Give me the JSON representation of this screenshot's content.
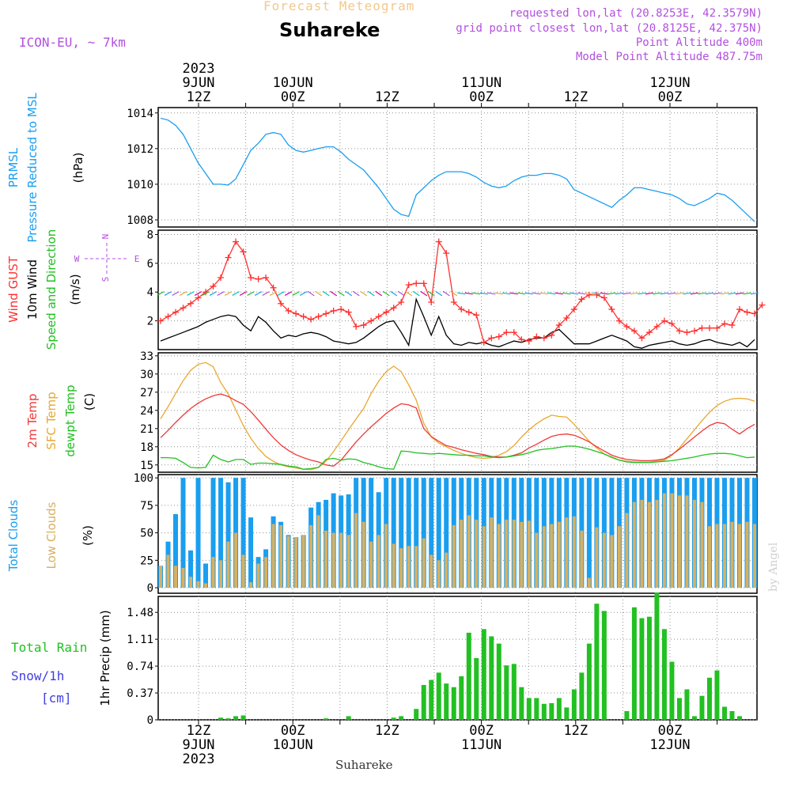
{
  "header": {
    "title_top": "Forecast Meteogram",
    "location": "Suhareke",
    "model": "ICON-EU, ~ 7km",
    "requested": "requested lon,lat (20.8253E, 42.3579N)",
    "grid": "grid point closest lon,lat (20.8125E, 42.375N)",
    "point_alt": "Point Altitude 400m",
    "model_alt": "Model Point Altitude 487.75m"
  },
  "footer": {
    "location": "Suhareke",
    "credit": "by Angel"
  },
  "colors": {
    "pressure": "#1a9eef",
    "gust": "#ff3030",
    "wind": "#000000",
    "temp": "#f03838",
    "sfc": "#e8a830",
    "dewpt": "#22c022",
    "total_clouds": "#1a9eef",
    "low_clouds": "#d8b060",
    "rain": "#22c022",
    "snow_label": "#4040e0",
    "gray_grid": "#909090"
  },
  "chart_data": [
    {
      "type": "line",
      "panel": "pressure",
      "ylabel": "PRMSL Pressure Reduced to MSL (hPa)",
      "label_main": "PRMSL",
      "label_sub": "Pressure Reduced to MSL",
      "unit": "(hPa)",
      "yticks": [
        "1008",
        "1010",
        "1012",
        "1014"
      ],
      "ylim": [
        1007.6,
        1014.3
      ],
      "series": [
        {
          "values": [
            1013.7,
            1013.6,
            1013.3,
            1012.8,
            1012.0,
            1011.2,
            1010.6,
            1010.0,
            1010.0,
            1009.95,
            1010.3,
            1011.1,
            1011.9,
            1012.3,
            1012.8,
            1012.9,
            1012.8,
            1012.2,
            1011.9,
            1011.8,
            1011.9,
            1012.0,
            1012.1,
            1012.1,
            1011.8,
            1011.4,
            1011.1,
            1010.8,
            1010.3,
            1009.8,
            1009.2,
            1008.6,
            1008.3,
            1008.2,
            1009.4,
            1009.8,
            1010.2,
            1010.5,
            1010.7,
            1010.7,
            1010.7,
            1010.6,
            1010.4,
            1010.1,
            1009.9,
            1009.8,
            1009.9,
            1010.2,
            1010.4,
            1010.5,
            1010.5,
            1010.6,
            1010.6,
            1010.5,
            1010.3,
            1009.7,
            1009.5,
            1009.3,
            1009.1,
            1008.9,
            1008.7,
            1009.1,
            1009.4,
            1009.8,
            1009.8,
            1009.7,
            1009.6,
            1009.5,
            1009.4,
            1009.2,
            1008.9,
            1008.8,
            1009.0,
            1009.2,
            1009.5,
            1009.4,
            1009.1,
            1008.7,
            1008.3,
            1007.9
          ]
        }
      ]
    },
    {
      "type": "line",
      "panel": "wind",
      "label_gust": "Wind GUST",
      "label_wind": "10m Wind",
      "label_dir": "Speed and Direction",
      "unit": "(m/s)",
      "compass": {
        "n": "N",
        "s": "S",
        "w": "W",
        "e": "E"
      },
      "yticks": [
        "2",
        "4",
        "6",
        "8"
      ],
      "ylim": [
        0,
        8.3
      ],
      "series": [
        {
          "name": "Wind GUST",
          "values": [
            2.0,
            2.3,
            2.6,
            2.9,
            3.2,
            3.6,
            4.0,
            4.4,
            5.0,
            6.4,
            7.5,
            6.8,
            5.0,
            4.9,
            5.0,
            4.3,
            3.2,
            2.7,
            2.5,
            2.3,
            2.1,
            2.3,
            2.5,
            2.7,
            2.8,
            2.6,
            1.6,
            1.7,
            2.0,
            2.3,
            2.6,
            2.9,
            3.3,
            4.5,
            4.6,
            4.6,
            3.3,
            7.5,
            6.7,
            3.3,
            2.8,
            2.6,
            2.4,
            0.5,
            0.8,
            0.9,
            1.2,
            1.2,
            0.7,
            0.6,
            0.9,
            0.8,
            1.0,
            1.7,
            2.2,
            2.8,
            3.5,
            3.8,
            3.8,
            3.6,
            2.8,
            2.0,
            1.6,
            1.3,
            0.8,
            1.2,
            1.6,
            2.0,
            1.8,
            1.3,
            1.2,
            1.3,
            1.5,
            1.5,
            1.5,
            1.8,
            1.7,
            2.8,
            2.6,
            2.5,
            3.1
          ]
        },
        {
          "name": "10m Wind",
          "values": [
            0.6,
            0.8,
            1.0,
            1.2,
            1.4,
            1.6,
            1.9,
            2.1,
            2.3,
            2.4,
            2.3,
            1.7,
            1.3,
            2.3,
            1.9,
            1.3,
            0.8,
            1.0,
            0.9,
            1.1,
            1.2,
            1.1,
            0.9,
            0.6,
            0.5,
            0.4,
            0.5,
            0.8,
            1.2,
            1.6,
            1.9,
            2.0,
            1.2,
            0.3,
            3.5,
            2.3,
            1.0,
            2.3,
            1.0,
            0.4,
            0.3,
            0.5,
            0.4,
            0.5,
            0.3,
            0.2,
            0.4,
            0.6,
            0.5,
            0.7,
            0.8,
            0.8,
            1.2,
            1.4,
            0.9,
            0.4,
            0.4,
            0.4,
            0.6,
            0.8,
            1.0,
            0.8,
            0.6,
            0.2,
            0.1,
            0.3,
            0.4,
            0.5,
            0.6,
            0.4,
            0.3,
            0.4,
            0.6,
            0.7,
            0.5,
            0.4,
            0.3,
            0.5,
            0.2,
            0.7
          ]
        }
      ]
    },
    {
      "type": "line",
      "panel": "temperature",
      "label_temp": "2m Temp",
      "label_sfc": "SFC Temp",
      "label_dew": "dewpt Temp",
      "unit": "(C)",
      "yticks": [
        "15",
        "18",
        "21",
        "24",
        "27",
        "30",
        "33"
      ],
      "ylim": [
        13.8,
        33.5
      ],
      "series": [
        {
          "name": "2m Temp",
          "values": [
            19.5,
            20.7,
            22.0,
            23.2,
            24.3,
            25.2,
            25.9,
            26.4,
            26.7,
            26.3,
            25.6,
            25.0,
            23.8,
            22.4,
            20.9,
            19.5,
            18.3,
            17.4,
            16.7,
            16.2,
            15.8,
            15.5,
            15.0,
            14.8,
            15.8,
            17.3,
            18.8,
            20.1,
            21.3,
            22.4,
            23.5,
            24.4,
            25.1,
            24.9,
            24.4,
            21.0,
            19.7,
            18.9,
            18.2,
            17.9,
            17.5,
            17.2,
            16.9,
            16.7,
            16.4,
            16.3,
            16.3,
            16.6,
            17.0,
            17.8,
            18.4,
            19.1,
            19.7,
            20.0,
            20.1,
            19.9,
            19.4,
            18.8,
            18.0,
            17.3,
            16.6,
            16.2,
            15.9,
            15.8,
            15.7,
            15.7,
            15.8,
            16.0,
            16.7,
            17.6,
            18.6,
            19.6,
            20.6,
            21.5,
            22.0,
            21.8,
            20.9,
            20.1,
            21.0,
            21.7
          ]
        },
        {
          "name": "SFC Temp",
          "values": [
            22.6,
            24.6,
            26.8,
            28.9,
            30.6,
            31.6,
            31.9,
            31.2,
            28.6,
            26.7,
            24.1,
            21.5,
            19.4,
            17.7,
            16.4,
            15.6,
            15.0,
            14.7,
            14.5,
            14.3,
            14.2,
            14.6,
            15.6,
            17.2,
            19.0,
            20.8,
            22.6,
            24.3,
            26.8,
            28.8,
            30.4,
            31.3,
            30.4,
            28.2,
            25.7,
            21.9,
            19.6,
            18.6,
            18.0,
            17.4,
            16.9,
            16.5,
            16.2,
            16.1,
            16.2,
            16.6,
            17.2,
            18.2,
            19.6,
            20.8,
            21.8,
            22.6,
            23.2,
            23.0,
            22.9,
            21.7,
            20.3,
            18.9,
            17.8,
            16.8,
            16.2,
            15.8,
            15.6,
            15.5,
            15.5,
            15.5,
            15.6,
            15.8,
            16.6,
            17.8,
            19.3,
            20.8,
            22.3,
            23.7,
            24.8,
            25.5,
            25.9,
            26.0,
            25.9,
            25.5
          ]
        },
        {
          "name": "dewpt Temp",
          "values": [
            16.2,
            16.2,
            16.1,
            15.4,
            14.6,
            14.5,
            14.6,
            16.6,
            15.9,
            15.5,
            15.9,
            15.9,
            15.1,
            15.3,
            15.3,
            15.2,
            15.1,
            14.8,
            14.7,
            14.3,
            14.4,
            14.6,
            15.9,
            16.1,
            15.8,
            16.0,
            15.9,
            15.4,
            15.1,
            14.7,
            14.4,
            14.3,
            17.3,
            17.2,
            17.0,
            16.9,
            16.8,
            16.9,
            16.8,
            16.7,
            16.6,
            16.6,
            16.5,
            16.5,
            16.3,
            16.2,
            16.3,
            16.5,
            16.7,
            17.0,
            17.4,
            17.6,
            17.7,
            17.9,
            18.1,
            18.1,
            17.9,
            17.6,
            17.2,
            16.8,
            16.3,
            15.8,
            15.5,
            15.4,
            15.4,
            15.4,
            15.5,
            15.6,
            15.7,
            15.9,
            16.1,
            16.3,
            16.6,
            16.8,
            16.9,
            16.9,
            16.8,
            16.5,
            16.2,
            16.3
          ]
        }
      ]
    },
    {
      "type": "bar",
      "panel": "clouds",
      "label_total": "Total Clouds",
      "label_low": "Low Clouds",
      "unit": "(%)",
      "yticks": [
        "0",
        "25",
        "50",
        "75",
        "100"
      ],
      "ylim": [
        -5,
        103
      ],
      "series": [
        {
          "name": "Total Clouds",
          "values": [
            20,
            42,
            67,
            100,
            34,
            100,
            22,
            100,
            100,
            96,
            100,
            100,
            64,
            28,
            35,
            65,
            60,
            48,
            46,
            48,
            73,
            78,
            80,
            86,
            84,
            85,
            100,
            100,
            100,
            87,
            100,
            100,
            100,
            100,
            100,
            100,
            100,
            100,
            100,
            100,
            100,
            100,
            100,
            100,
            100,
            100,
            100,
            100,
            100,
            100,
            100,
            100,
            100,
            100,
            100,
            100,
            100,
            100,
            100,
            100,
            100,
            100,
            100,
            100,
            100,
            100,
            100,
            100,
            100,
            100,
            100,
            100,
            100,
            100,
            100,
            100,
            100,
            100,
            100,
            100
          ]
        },
        {
          "name": "Low Clouds",
          "values": [
            20,
            30,
            20,
            18,
            10,
            6,
            4,
            28,
            25,
            42,
            50,
            30,
            5,
            22,
            28,
            58,
            57,
            47,
            46,
            48,
            57,
            66,
            52,
            50,
            50,
            48,
            68,
            60,
            42,
            48,
            58,
            40,
            36,
            38,
            38,
            45,
            30,
            25,
            32,
            57,
            62,
            66,
            62,
            56,
            64,
            58,
            62,
            62,
            60,
            61,
            50,
            56,
            58,
            60,
            64,
            65,
            52,
            9,
            55,
            50,
            48,
            56,
            68,
            78,
            80,
            78,
            80,
            86,
            86,
            84,
            84,
            80,
            78,
            56,
            58,
            58,
            60,
            58,
            60,
            58
          ]
        }
      ]
    },
    {
      "type": "bar",
      "panel": "precip",
      "label_rain": "Total Rain",
      "label_snow": "Snow/1h",
      "label_cm": "[cm]",
      "ylabel": "1hr Precip (mm)",
      "yticks": [
        "0",
        "0.37",
        "0.74",
        "1.11",
        "1.48"
      ],
      "ylim": [
        0,
        1.7
      ],
      "series": [
        {
          "name": "Total Rain",
          "values": [
            0,
            0,
            0,
            0,
            0,
            0,
            0,
            0,
            0.03,
            0.02,
            0.05,
            0.06,
            0,
            0,
            0,
            0,
            0,
            0,
            0,
            0,
            0,
            0,
            0.02,
            0,
            0,
            0.05,
            0,
            0,
            0,
            0,
            0,
            0.03,
            0.05,
            0,
            0.15,
            0.48,
            0.55,
            0.65,
            0.5,
            0.45,
            0.6,
            1.2,
            0.85,
            1.25,
            1.15,
            1.05,
            0.75,
            0.77,
            0.45,
            0.3,
            0.3,
            0.22,
            0.23,
            0.3,
            0.17,
            0.42,
            0.65,
            1.05,
            1.6,
            1.5,
            0,
            0,
            0.12,
            1.55,
            1.4,
            1.42,
            1.75,
            1.25,
            0.8,
            0.3,
            0.42,
            0.05,
            0.33,
            0.58,
            0.68,
            0.18,
            0.12,
            0.05,
            0,
            0
          ]
        }
      ]
    }
  ],
  "time_axis": {
    "top_year": "2023",
    "top": [
      {
        "day": "9JUN",
        "hour": "12Z"
      },
      {
        "day": "10JUN",
        "hour": "00Z"
      },
      {
        "day": "",
        "hour": "12Z"
      },
      {
        "day": "11JUN",
        "hour": "00Z"
      },
      {
        "day": "",
        "hour": "12Z"
      },
      {
        "day": "12JUN",
        "hour": "00Z"
      }
    ],
    "bottom": [
      {
        "hour": "12Z",
        "day": "9JUN"
      },
      {
        "hour": "00Z",
        "day": "10JUN"
      },
      {
        "hour": "12Z",
        "day": ""
      },
      {
        "hour": "00Z",
        "day": "11JUN"
      },
      {
        "hour": "12Z",
        "day": ""
      },
      {
        "hour": "00Z",
        "day": "12JUN"
      }
    ],
    "bottom_year": "2023"
  }
}
